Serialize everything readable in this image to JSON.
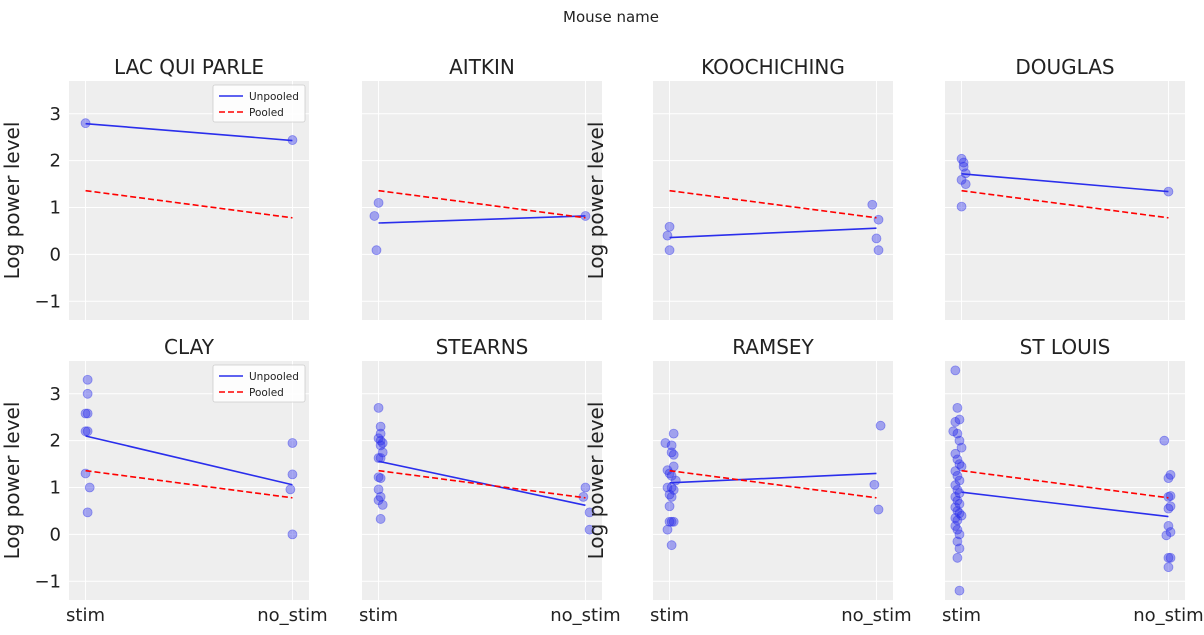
{
  "figure": {
    "suptitle": "Mouse name"
  },
  "legend": {
    "unpooled": "Unpooled",
    "pooled": "Pooled"
  },
  "colors": {
    "unpooled": "#2a2eec",
    "pooled": "#ff0000",
    "points": "#2a2eec",
    "panel_bg": "#eeeeee",
    "grid": "#ffffff"
  },
  "chart_data": [
    {
      "type": "scatter",
      "title": "LAC QUI PARLE",
      "xlabel": "",
      "ylabel": "Log power level",
      "categories": [
        "stim",
        "no_stim"
      ],
      "ylim": [
        -1.4,
        3.7
      ],
      "yticks": [
        -1,
        0,
        1,
        2,
        3
      ],
      "legend": "top-right",
      "points": [
        {
          "x": 0,
          "y": 2.8
        },
        {
          "x": 1,
          "y": 2.44
        }
      ],
      "series": [
        {
          "name": "Unpooled",
          "style": "solid",
          "values": [
            2.79,
            2.43
          ]
        },
        {
          "name": "Pooled",
          "style": "dashed",
          "values": [
            1.36,
            0.78
          ]
        }
      ]
    },
    {
      "type": "scatter",
      "title": "AITKIN",
      "xlabel": "",
      "ylabel": "",
      "categories": [
        "stim",
        "no_stim"
      ],
      "ylim": [
        -1.4,
        3.7
      ],
      "yticks": [
        -1,
        0,
        1,
        2,
        3
      ],
      "legend": "",
      "points": [
        {
          "x": 0,
          "y": 1.1
        },
        {
          "x": -0.02,
          "y": 0.82
        },
        {
          "x": -0.01,
          "y": 0.09
        },
        {
          "x": 1.0,
          "y": 0.82
        }
      ],
      "series": [
        {
          "name": "Unpooled",
          "style": "solid",
          "values": [
            0.67,
            0.82
          ]
        },
        {
          "name": "Pooled",
          "style": "dashed",
          "values": [
            1.36,
            0.78
          ]
        }
      ]
    },
    {
      "type": "scatter",
      "title": "KOOCHICHING",
      "xlabel": "",
      "ylabel": "Log power level",
      "categories": [
        "stim",
        "no_stim"
      ],
      "ylim": [
        -1.4,
        3.7
      ],
      "yticks": [
        -1,
        0,
        1,
        2,
        3
      ],
      "legend": "",
      "points": [
        {
          "x": 0,
          "y": 0.59
        },
        {
          "x": -0.01,
          "y": 0.4
        },
        {
          "x": 0,
          "y": 0.09
        },
        {
          "x": 0.98,
          "y": 1.06
        },
        {
          "x": 1.01,
          "y": 0.74
        },
        {
          "x": 1.0,
          "y": 0.34
        },
        {
          "x": 1.01,
          "y": 0.09
        }
      ],
      "series": [
        {
          "name": "Unpooled",
          "style": "solid",
          "values": [
            0.36,
            0.56
          ]
        },
        {
          "name": "Pooled",
          "style": "dashed",
          "values": [
            1.36,
            0.78
          ]
        }
      ]
    },
    {
      "type": "scatter",
      "title": "DOUGLAS",
      "xlabel": "",
      "ylabel": "",
      "categories": [
        "stim",
        "no_stim"
      ],
      "ylim": [
        -1.4,
        3.7
      ],
      "yticks": [
        -1,
        0,
        1,
        2,
        3
      ],
      "legend": "",
      "points": [
        {
          "x": 0,
          "y": 2.04
        },
        {
          "x": 0.01,
          "y": 1.96
        },
        {
          "x": 0.01,
          "y": 1.87
        },
        {
          "x": 0.02,
          "y": 1.73
        },
        {
          "x": 0,
          "y": 1.59
        },
        {
          "x": 0.02,
          "y": 1.5
        },
        {
          "x": 0,
          "y": 1.02
        },
        {
          "x": 1.0,
          "y": 1.34
        }
      ],
      "series": [
        {
          "name": "Unpooled",
          "style": "solid",
          "values": [
            1.72,
            1.34
          ]
        },
        {
          "name": "Pooled",
          "style": "dashed",
          "values": [
            1.36,
            0.78
          ]
        }
      ]
    },
    {
      "type": "scatter",
      "title": "CLAY",
      "xlabel": "",
      "ylabel": "Log power level",
      "categories": [
        "stim",
        "no_stim"
      ],
      "ylim": [
        -1.4,
        3.7
      ],
      "yticks": [
        -1,
        0,
        1,
        2,
        3
      ],
      "legend": "top-right",
      "points": [
        {
          "x": 0.01,
          "y": 3.3
        },
        {
          "x": 0.01,
          "y": 3.0
        },
        {
          "x": 0,
          "y": 2.58
        },
        {
          "x": 0.01,
          "y": 2.58
        },
        {
          "x": 0,
          "y": 2.2
        },
        {
          "x": 0.01,
          "y": 2.2
        },
        {
          "x": 0,
          "y": 1.3
        },
        {
          "x": 0.02,
          "y": 1.0
        },
        {
          "x": 0.01,
          "y": 0.47
        },
        {
          "x": 1.0,
          "y": 1.95
        },
        {
          "x": 1.0,
          "y": 1.28
        },
        {
          "x": 0.99,
          "y": 0.96
        },
        {
          "x": 1.0,
          "y": 0.0
        }
      ],
      "series": [
        {
          "name": "Unpooled",
          "style": "solid",
          "values": [
            2.1,
            1.06
          ]
        },
        {
          "name": "Pooled",
          "style": "dashed",
          "values": [
            1.36,
            0.78
          ]
        }
      ]
    },
    {
      "type": "scatter",
      "title": "STEARNS",
      "xlabel": "",
      "ylabel": "",
      "categories": [
        "stim",
        "no_stim"
      ],
      "ylim": [
        -1.4,
        3.7
      ],
      "yticks": [
        -1,
        0,
        1,
        2,
        3
      ],
      "legend": "",
      "points": [
        {
          "x": 0,
          "y": 2.7
        },
        {
          "x": 0.01,
          "y": 2.3
        },
        {
          "x": 0.01,
          "y": 2.15
        },
        {
          "x": 0,
          "y": 2.05
        },
        {
          "x": 0.01,
          "y": 2.0
        },
        {
          "x": 0.02,
          "y": 1.95
        },
        {
          "x": 0.01,
          "y": 1.9
        },
        {
          "x": 0.02,
          "y": 1.75
        },
        {
          "x": 0,
          "y": 1.63
        },
        {
          "x": 0.01,
          "y": 1.63
        },
        {
          "x": 0,
          "y": 1.22
        },
        {
          "x": 0.01,
          "y": 1.2
        },
        {
          "x": 0,
          "y": 0.96
        },
        {
          "x": 0.01,
          "y": 0.8
        },
        {
          "x": 0,
          "y": 0.73
        },
        {
          "x": 0.02,
          "y": 0.63
        },
        {
          "x": 0.01,
          "y": 0.33
        },
        {
          "x": 1.0,
          "y": 1.0
        },
        {
          "x": 0.99,
          "y": 0.8
        },
        {
          "x": 1.02,
          "y": 0.47
        },
        {
          "x": 1.02,
          "y": 0.1
        }
      ],
      "series": [
        {
          "name": "Unpooled",
          "style": "solid",
          "values": [
            1.56,
            0.62
          ]
        },
        {
          "name": "Pooled",
          "style": "dashed",
          "values": [
            1.36,
            0.78
          ]
        }
      ]
    },
    {
      "type": "scatter",
      "title": "RAMSEY",
      "xlabel": "",
      "ylabel": "Log power level",
      "categories": [
        "stim",
        "no_stim"
      ],
      "ylim": [
        -1.4,
        3.7
      ],
      "yticks": [
        -1,
        0,
        1,
        2,
        3
      ],
      "legend": "",
      "points": [
        {
          "x": -0.02,
          "y": 1.95
        },
        {
          "x": 0.01,
          "y": 1.9
        },
        {
          "x": 0.02,
          "y": 2.15
        },
        {
          "x": 0.01,
          "y": 1.75
        },
        {
          "x": 0.02,
          "y": 1.7
        },
        {
          "x": -0.01,
          "y": 1.37
        },
        {
          "x": 0.02,
          "y": 1.45
        },
        {
          "x": 0,
          "y": 1.3
        },
        {
          "x": 0.01,
          "y": 1.25
        },
        {
          "x": 0.03,
          "y": 1.15
        },
        {
          "x": -0.01,
          "y": 1.0
        },
        {
          "x": 0.01,
          "y": 1.0
        },
        {
          "x": 0.02,
          "y": 0.95
        },
        {
          "x": 0,
          "y": 0.85
        },
        {
          "x": 0.01,
          "y": 0.8
        },
        {
          "x": 0,
          "y": 0.6
        },
        {
          "x": 0.01,
          "y": 0.27
        },
        {
          "x": 0,
          "y": 0.27
        },
        {
          "x": 0.02,
          "y": 0.27
        },
        {
          "x": -0.01,
          "y": 0.1
        },
        {
          "x": 0.01,
          "y": -0.23
        },
        {
          "x": 1.02,
          "y": 2.32
        },
        {
          "x": 0.99,
          "y": 1.06
        },
        {
          "x": 1.01,
          "y": 0.53
        }
      ],
      "series": [
        {
          "name": "Unpooled",
          "style": "solid",
          "values": [
            1.1,
            1.3
          ]
        },
        {
          "name": "Pooled",
          "style": "dashed",
          "values": [
            1.36,
            0.78
          ]
        }
      ]
    },
    {
      "type": "scatter",
      "title": "ST LOUIS",
      "xlabel": "",
      "ylabel": "",
      "categories": [
        "stim",
        "no_stim"
      ],
      "ylim": [
        -1.4,
        3.7
      ],
      "yticks": [
        -1,
        0,
        1,
        2,
        3
      ],
      "legend": "",
      "points": [
        {
          "x": -0.03,
          "y": 3.5
        },
        {
          "x": -0.02,
          "y": 2.7
        },
        {
          "x": -0.01,
          "y": 2.45
        },
        {
          "x": -0.03,
          "y": 2.4
        },
        {
          "x": -0.04,
          "y": 2.2
        },
        {
          "x": -0.02,
          "y": 2.15
        },
        {
          "x": -0.01,
          "y": 2.0
        },
        {
          "x": 0.0,
          "y": 1.85
        },
        {
          "x": -0.03,
          "y": 1.72
        },
        {
          "x": -0.02,
          "y": 1.6
        },
        {
          "x": -0.01,
          "y": 1.5
        },
        {
          "x": 0.0,
          "y": 1.45
        },
        {
          "x": -0.03,
          "y": 1.35
        },
        {
          "x": -0.02,
          "y": 1.25
        },
        {
          "x": -0.01,
          "y": 1.15
        },
        {
          "x": -0.03,
          "y": 1.05
        },
        {
          "x": -0.02,
          "y": 0.95
        },
        {
          "x": -0.01,
          "y": 0.88
        },
        {
          "x": -0.03,
          "y": 0.8
        },
        {
          "x": -0.02,
          "y": 0.72
        },
        {
          "x": -0.01,
          "y": 0.65
        },
        {
          "x": -0.03,
          "y": 0.58
        },
        {
          "x": -0.02,
          "y": 0.5
        },
        {
          "x": -0.01,
          "y": 0.45
        },
        {
          "x": 0.0,
          "y": 0.4
        },
        {
          "x": -0.03,
          "y": 0.35
        },
        {
          "x": -0.02,
          "y": 0.3
        },
        {
          "x": -0.03,
          "y": 0.18
        },
        {
          "x": -0.02,
          "y": 0.1
        },
        {
          "x": -0.01,
          "y": 0.0
        },
        {
          "x": -0.02,
          "y": -0.15
        },
        {
          "x": -0.01,
          "y": -0.3
        },
        {
          "x": -0.02,
          "y": -0.5
        },
        {
          "x": -0.01,
          "y": -1.2
        },
        {
          "x": 0.98,
          "y": 2.0
        },
        {
          "x": 1.01,
          "y": 1.27
        },
        {
          "x": 1.0,
          "y": 1.2
        },
        {
          "x": 1.01,
          "y": 0.82
        },
        {
          "x": 1.0,
          "y": 0.8
        },
        {
          "x": 1.01,
          "y": 0.6
        },
        {
          "x": 1.0,
          "y": 0.55
        },
        {
          "x": 1.0,
          "y": 0.18
        },
        {
          "x": 1.01,
          "y": 0.05
        },
        {
          "x": 0.99,
          "y": -0.02
        },
        {
          "x": 1.0,
          "y": -0.5
        },
        {
          "x": 1.01,
          "y": -0.5
        },
        {
          "x": 1.0,
          "y": -0.7
        }
      ],
      "series": [
        {
          "name": "Unpooled",
          "style": "solid",
          "values": [
            0.9,
            0.38
          ]
        },
        {
          "name": "Pooled",
          "style": "dashed",
          "values": [
            1.36,
            0.78
          ]
        }
      ]
    }
  ]
}
